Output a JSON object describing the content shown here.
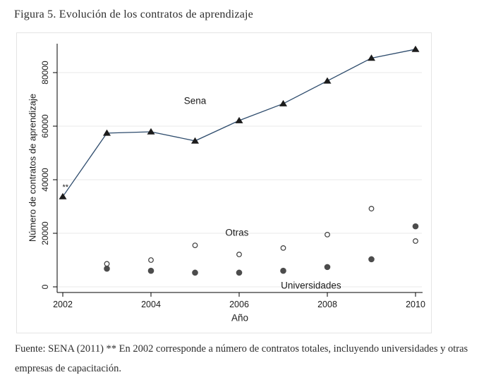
{
  "page": {
    "title": "Figura 5. Evolución de los contratos de aprendizaje",
    "footnote_line1": "Fuente: SENA (2011) ** En 2002 corresponde a número de contratos totales, incluyendo universidades y otras",
    "footnote_line2": "empresas de capacitación."
  },
  "chart_data": {
    "type": "line",
    "x": [
      2002,
      2003,
      2004,
      2005,
      2006,
      2007,
      2008,
      2009,
      2010
    ],
    "series": [
      {
        "name": "Sena",
        "style": "line-with-triangle-markers",
        "values": [
          33700,
          57400,
          57900,
          54500,
          62100,
          68400,
          76900,
          85400,
          88700
        ]
      },
      {
        "name": "Otras",
        "style": "scatter-open-circles",
        "values": [
          null,
          8600,
          10000,
          15500,
          12100,
          14500,
          19500,
          29200,
          17100
        ]
      },
      {
        "name": "Universidades",
        "style": "scatter-filled-circles",
        "values": [
          null,
          6800,
          6000,
          5300,
          5300,
          6000,
          7400,
          10300,
          22600
        ]
      }
    ],
    "xlabel": "Año",
    "ylabel": "Número de contratos de aprendizaje",
    "x_ticks": [
      2002,
      2004,
      2006,
      2008,
      2010
    ],
    "y_ticks": [
      0,
      20000,
      40000,
      60000,
      80000
    ],
    "xlim": [
      2001.9,
      2010.2
    ],
    "ylim": [
      0,
      91000
    ],
    "grid": "horizontal-light",
    "legend": "inline-labels",
    "inline_labels": [
      {
        "text": "Sena",
        "x": 2005,
        "y": 69500,
        "size": 13.5
      },
      {
        "text": "Otras",
        "x": 2005.95,
        "y": 20300,
        "size": 13.5
      },
      {
        "text": "Universidades",
        "x": 2007.63,
        "y": 550,
        "size": 13.5
      },
      {
        "text": "**",
        "x": 2002.06,
        "y": 37100,
        "size": 11
      }
    ],
    "colors": {
      "line": "#2e4c6d",
      "triangle_marker": "#1c1c1c",
      "open_circle_stroke": "#3c3c3c",
      "filled_circle": "#4c4c4c",
      "grid": "#e9e9e9",
      "axis": "#000000",
      "tick_text": "#1a1a1a"
    }
  }
}
